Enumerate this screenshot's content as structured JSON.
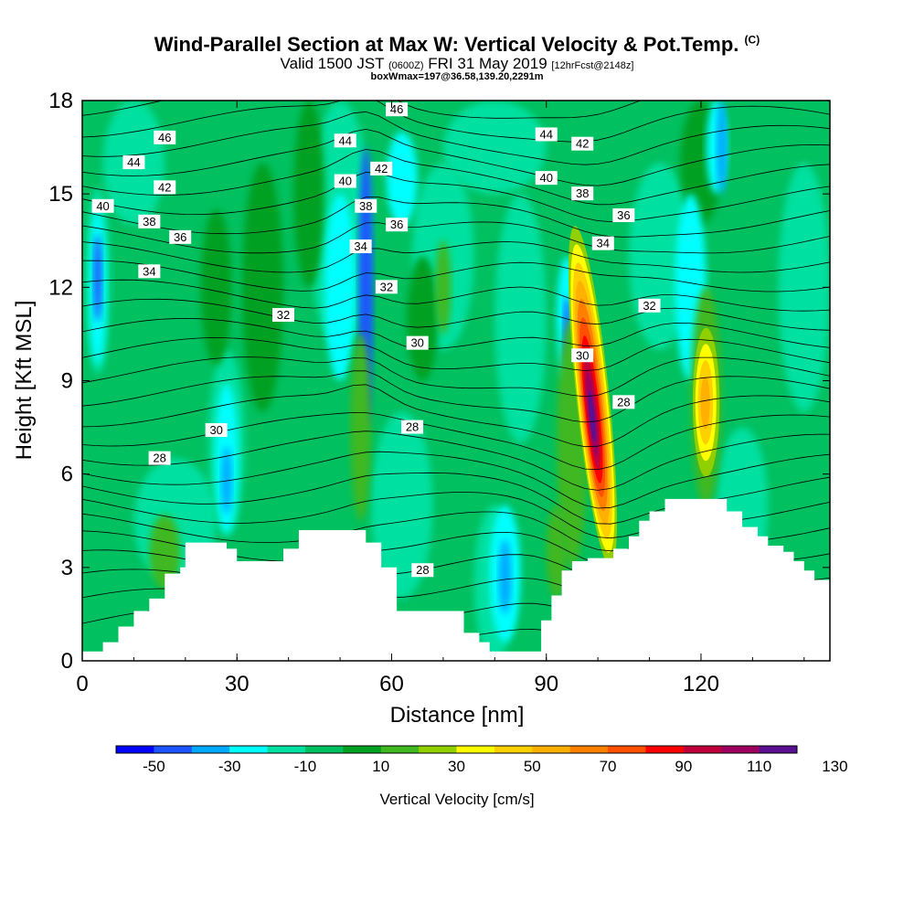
{
  "chart_data": {
    "type": "heatmap",
    "title": "Wind-Parallel Section at Max W: Vertical Velocity & Pot.Temp.",
    "title_mark": "(C)",
    "subtitle_parts": [
      "Valid 1500 JST",
      "(0600Z)",
      "FRI 31 May 2019",
      "[12hrFcst@2148z]"
    ],
    "subtitle2": "boxWmax=197@36.58,139.20,2291m",
    "xlabel": "Distance [nm]",
    "ylabel": "Height [Kft MSL]",
    "xlim": [
      0,
      145
    ],
    "ylim": [
      0,
      18
    ],
    "x_ticks": [
      "0",
      "30",
      "60",
      "90",
      "120"
    ],
    "y_ticks": [
      "0",
      "3",
      "6",
      "9",
      "12",
      "15",
      "18"
    ],
    "colorbar": {
      "label": "Vertical Velocity [cm/s]",
      "tick_labels": [
        "-50",
        "-30",
        "-10",
        "10",
        "30",
        "50",
        "70",
        "90",
        "110",
        "130"
      ],
      "colors": [
        "#0000ff",
        "#1c55ff",
        "#00a8ff",
        "#00ffff",
        "#00e0a0",
        "#00c060",
        "#00a020",
        "#40b820",
        "#90d000",
        "#ffff00",
        "#ffd000",
        "#ffb000",
        "#ff8000",
        "#ff5000",
        "#ff0000",
        "#c0003c",
        "#a00060",
        "#5a1090"
      ]
    },
    "theta_contour_labels": [
      {
        "x": 4,
        "y": 14.6,
        "v": "40"
      },
      {
        "x": 10,
        "y": 16.0,
        "v": "44"
      },
      {
        "x": 16,
        "y": 16.8,
        "v": "46"
      },
      {
        "x": 16,
        "y": 15.2,
        "v": "42"
      },
      {
        "x": 13,
        "y": 14.1,
        "v": "38"
      },
      {
        "x": 19,
        "y": 13.6,
        "v": "36"
      },
      {
        "x": 13,
        "y": 12.5,
        "v": "34"
      },
      {
        "x": 39,
        "y": 11.1,
        "v": "32"
      },
      {
        "x": 26,
        "y": 7.4,
        "v": "30"
      },
      {
        "x": 15,
        "y": 6.5,
        "v": "28"
      },
      {
        "x": 51,
        "y": 16.7,
        "v": "44"
      },
      {
        "x": 61,
        "y": 17.7,
        "v": "46"
      },
      {
        "x": 51,
        "y": 15.4,
        "v": "40"
      },
      {
        "x": 58,
        "y": 15.8,
        "v": "42"
      },
      {
        "x": 55,
        "y": 14.6,
        "v": "38"
      },
      {
        "x": 61,
        "y": 14.0,
        "v": "36"
      },
      {
        "x": 54,
        "y": 13.3,
        "v": "34"
      },
      {
        "x": 59,
        "y": 12.0,
        "v": "32"
      },
      {
        "x": 65,
        "y": 10.2,
        "v": "30"
      },
      {
        "x": 64,
        "y": 7.5,
        "v": "28"
      },
      {
        "x": 66,
        "y": 2.9,
        "v": "28"
      },
      {
        "x": 90,
        "y": 16.9,
        "v": "44"
      },
      {
        "x": 97,
        "y": 16.6,
        "v": "42"
      },
      {
        "x": 90,
        "y": 15.5,
        "v": "40"
      },
      {
        "x": 97,
        "y": 15.0,
        "v": "38"
      },
      {
        "x": 105,
        "y": 14.3,
        "v": "36"
      },
      {
        "x": 101,
        "y": 13.4,
        "v": "34"
      },
      {
        "x": 110,
        "y": 11.4,
        "v": "32"
      },
      {
        "x": 97,
        "y": 9.8,
        "v": "30"
      },
      {
        "x": 105,
        "y": 8.3,
        "v": "28"
      }
    ]
  }
}
